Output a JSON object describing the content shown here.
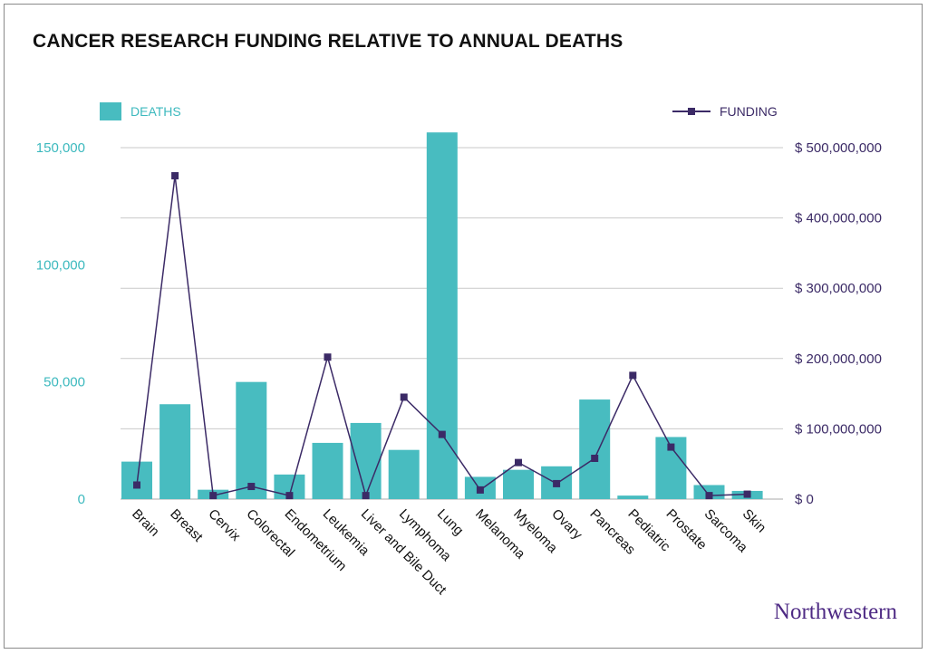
{
  "chart_data": {
    "type": "bar",
    "title": "CANCER RESEARCH FUNDING RELATIVE TO ANNUAL DEATHS",
    "categories": [
      "Brain",
      "Breast",
      "Cervix",
      "Colorectal",
      "Endometrium",
      "Leukemia",
      "Liver and Bile Duct",
      "Lymphoma",
      "Lung",
      "Melanoma",
      "Myeloma",
      "Ovary",
      "Pancreas",
      "Pediatric",
      "Prostate",
      "Sarcoma",
      "Skin"
    ],
    "series": [
      {
        "name": "DEATHS",
        "type": "bar",
        "axis": "left",
        "color": "#48bcc0",
        "values": [
          16000,
          40500,
          4000,
          50000,
          10500,
          24000,
          32500,
          21000,
          156500,
          9500,
          12500,
          14000,
          42500,
          1500,
          26500,
          6000,
          3500
        ]
      },
      {
        "name": "FUNDING",
        "type": "line",
        "axis": "right",
        "color": "#3b2a66",
        "values": [
          20000000,
          460000000,
          5000000,
          18000000,
          5000000,
          202000000,
          5000000,
          145000000,
          92000000,
          13000000,
          52000000,
          22000000,
          58000000,
          176000000,
          74000000,
          5000000,
          7000000
        ]
      }
    ],
    "y_left": {
      "ylim": [
        0,
        150000
      ],
      "ticks": [
        0,
        50000,
        100000,
        150000
      ],
      "tick_labels": [
        "0",
        "50,000",
        "100,000",
        "150,000"
      ]
    },
    "y_right": {
      "ylim": [
        0,
        500000000
      ],
      "ticks": [
        0,
        100000000,
        200000000,
        300000000,
        400000000,
        500000000
      ],
      "tick_labels": [
        "$ 0",
        "$ 100,000,000",
        "$ 200,000,000",
        "$ 300,000,000",
        "$ 400,000,000",
        "$ 500,000,000"
      ]
    },
    "grid": true,
    "legend": [
      "top-left",
      "top-right"
    ]
  },
  "legend": {
    "deaths_label": "DEATHS",
    "funding_label": "FUNDING"
  },
  "brand": "Northwestern",
  "colors": {
    "bar": "#48bcc0",
    "line": "#3b2a66",
    "left_axis": "#3cb9be",
    "right_axis": "#3b2a66",
    "grid": "#c9c9c9",
    "brand": "#4e2a84"
  }
}
